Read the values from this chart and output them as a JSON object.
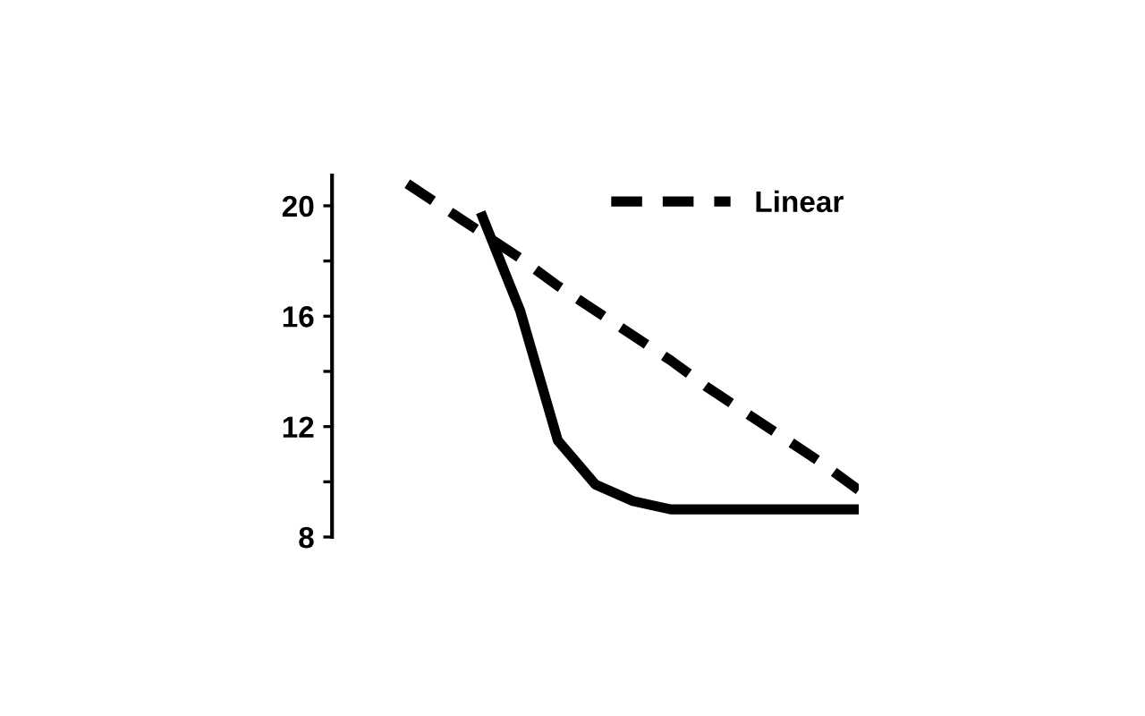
{
  "chart_data": {
    "type": "line",
    "categories": [
      null,
      null,
      null,
      null,
      null,
      null,
      null,
      null,
      null,
      null,
      null,
      null,
      null,
      null,
      null
    ],
    "series": [
      {
        "color": "#000000",
        "line_style": "solid",
        "values": [
          null,
          null,
          null,
          null,
          19.6,
          16.2,
          11.5,
          9.9,
          9.3,
          9.0,
          9.0,
          9.0,
          9.0,
          9.0,
          9.0
        ]
      },
      {
        "name": "Linear",
        "color": "#000000",
        "line_style": "dashed",
        "values": [
          null,
          null,
          20.8,
          19.9,
          19.0,
          18.1,
          17.1,
          16.2,
          15.3,
          14.4,
          13.4,
          12.5,
          11.6,
          10.7,
          9.7
        ]
      }
    ],
    "ylim": [
      8,
      21.1
    ],
    "yticks": [
      8,
      {
        "value": 10,
        "label": null
      },
      12,
      {
        "value": 14,
        "label": null
      },
      16,
      {
        "value": 18,
        "label": null
      },
      20
    ],
    "grid": false,
    "legend": "top right",
    "marker": "none"
  }
}
